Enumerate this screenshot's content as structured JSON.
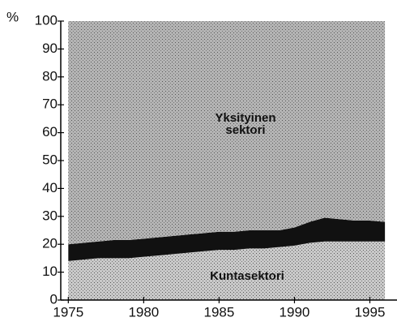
{
  "chart_data": {
    "type": "stacked-area",
    "y_label": "%",
    "x": [
      1975,
      1976,
      1977,
      1978,
      1979,
      1980,
      1981,
      1982,
      1983,
      1984,
      1985,
      1986,
      1987,
      1988,
      1989,
      1990,
      1991,
      1992,
      1993,
      1994,
      1995,
      1996
    ],
    "series": [
      {
        "name": "Kuntasektori",
        "color": "#c9c9c9",
        "values": [
          14,
          14.5,
          15,
          15,
          15,
          15.5,
          16,
          16.5,
          17,
          17.5,
          18,
          18,
          18.5,
          18.5,
          19,
          19.5,
          20.5,
          21,
          21,
          21,
          21,
          21
        ]
      },
      {
        "color": "#111111",
        "values": [
          6,
          6,
          6,
          6.5,
          6.5,
          6.5,
          6.5,
          6.5,
          6.5,
          6.5,
          6.5,
          6.5,
          6.5,
          6.5,
          6,
          6.5,
          7.5,
          8.5,
          8,
          7.5,
          7.5,
          7
        ]
      },
      {
        "name": "Yksityinen sektori",
        "color": "#b4b4b4",
        "values": [
          80,
          79.5,
          79,
          78.5,
          78.5,
          78,
          77.5,
          77,
          76.5,
          76,
          75.5,
          75.5,
          75,
          75,
          75,
          74,
          72,
          70.5,
          71,
          71.5,
          71.5,
          72
        ]
      }
    ],
    "xlim": [
      1974.5,
      1996.8
    ],
    "xticks": [
      1975,
      1980,
      1985,
      1990,
      1995
    ],
    "ylim": [
      0,
      100
    ],
    "yticks": [
      0,
      10,
      20,
      30,
      40,
      50,
      60,
      70,
      80,
      90,
      100
    ]
  }
}
